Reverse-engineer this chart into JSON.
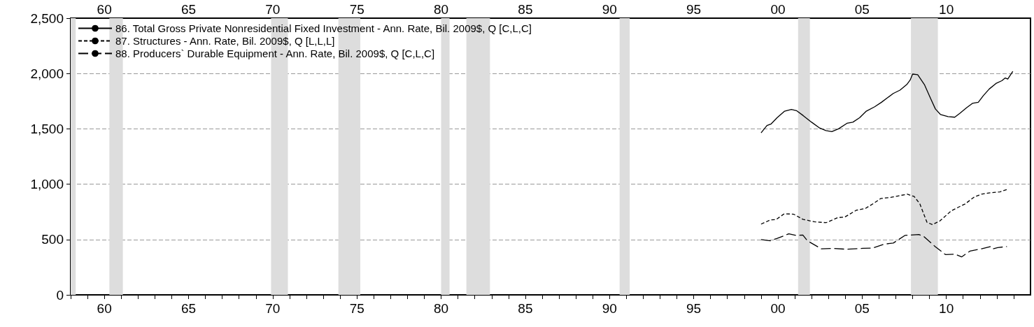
{
  "chart_data": {
    "type": "line",
    "xlim": [
      1958,
      2015
    ],
    "xticks": [
      {
        "value": 1958,
        "label": null
      },
      {
        "value": 1959,
        "label": null
      },
      {
        "value": 1960,
        "label": "60"
      },
      {
        "value": 1961,
        "label": null
      },
      {
        "value": 1962,
        "label": null
      },
      {
        "value": 1963,
        "label": null
      },
      {
        "value": 1964,
        "label": null
      },
      {
        "value": 1965,
        "label": "65"
      },
      {
        "value": 1966,
        "label": null
      },
      {
        "value": 1967,
        "label": null
      },
      {
        "value": 1968,
        "label": null
      },
      {
        "value": 1969,
        "label": null
      },
      {
        "value": 1970,
        "label": "70"
      },
      {
        "value": 1971,
        "label": null
      },
      {
        "value": 1972,
        "label": null
      },
      {
        "value": 1973,
        "label": null
      },
      {
        "value": 1974,
        "label": null
      },
      {
        "value": 1975,
        "label": "75"
      },
      {
        "value": 1976,
        "label": null
      },
      {
        "value": 1977,
        "label": null
      },
      {
        "value": 1978,
        "label": null
      },
      {
        "value": 1979,
        "label": null
      },
      {
        "value": 1980,
        "label": "80"
      },
      {
        "value": 1981,
        "label": null
      },
      {
        "value": 1982,
        "label": null
      },
      {
        "value": 1983,
        "label": null
      },
      {
        "value": 1984,
        "label": null
      },
      {
        "value": 1985,
        "label": "85"
      },
      {
        "value": 1986,
        "label": null
      },
      {
        "value": 1987,
        "label": null
      },
      {
        "value": 1988,
        "label": null
      },
      {
        "value": 1989,
        "label": null
      },
      {
        "value": 1990,
        "label": "90"
      },
      {
        "value": 1991,
        "label": null
      },
      {
        "value": 1992,
        "label": null
      },
      {
        "value": 1993,
        "label": null
      },
      {
        "value": 1994,
        "label": null
      },
      {
        "value": 1995,
        "label": "95"
      },
      {
        "value": 1996,
        "label": null
      },
      {
        "value": 1997,
        "label": null
      },
      {
        "value": 1998,
        "label": null
      },
      {
        "value": 1999,
        "label": null
      },
      {
        "value": 2000,
        "label": "00"
      },
      {
        "value": 2001,
        "label": null
      },
      {
        "value": 2002,
        "label": null
      },
      {
        "value": 2003,
        "label": null
      },
      {
        "value": 2004,
        "label": null
      },
      {
        "value": 2005,
        "label": "05"
      },
      {
        "value": 2006,
        "label": null
      },
      {
        "value": 2007,
        "label": null
      },
      {
        "value": 2008,
        "label": null
      },
      {
        "value": 2009,
        "label": null
      },
      {
        "value": 2010,
        "label": "10"
      },
      {
        "value": 2011,
        "label": null
      },
      {
        "value": 2012,
        "label": null
      },
      {
        "value": 2013,
        "label": null
      },
      {
        "value": 2014,
        "label": null
      }
    ],
    "x2lim": [
      1958,
      2015
    ],
    "x2ticks": [
      {
        "value": 1960,
        "label": "60"
      },
      {
        "value": 1965,
        "label": "65"
      },
      {
        "value": 1970,
        "label": "70"
      },
      {
        "value": 1975,
        "label": "75"
      },
      {
        "value": 1980,
        "label": "80"
      },
      {
        "value": 1985,
        "label": "85"
      },
      {
        "value": 1990,
        "label": "90"
      },
      {
        "value": 1995,
        "label": "95"
      },
      {
        "value": 2000,
        "label": "00"
      },
      {
        "value": 2005,
        "label": "05"
      },
      {
        "value": 2010,
        "label": "10"
      }
    ],
    "ylim": [
      0,
      2500
    ],
    "yticks": [
      0,
      500,
      {
        "value": 1000,
        "label": "1,000"
      },
      {
        "value": 1500,
        "label": "1,500"
      },
      {
        "value": 2000,
        "label": "2,000"
      },
      {
        "value": 2500,
        "label": "2,500"
      }
    ],
    "grid": "y",
    "legend": "top left",
    "series": [
      {
        "name": "86. Total Gross Private Nonresidential Fixed Investment - Ann. Rate, Bil. 2009$, Q [C,L,C]",
        "color": "#000000",
        "line_style": "solid",
        "x": [
          1999.0,
          1999.35,
          1999.6,
          1999.95,
          2000.4,
          2000.8,
          2001.1,
          2001.5,
          2002.0,
          2002.45,
          2002.85,
          2003.2,
          2003.6,
          2004.1,
          2004.45,
          2004.85,
          2005.25,
          2005.75,
          2006.15,
          2006.5,
          2006.85,
          2007.25,
          2007.65,
          2007.85,
          2008.0,
          2008.3,
          2008.7,
          2009.05,
          2009.35,
          2009.65,
          2010.1,
          2010.5,
          2010.8,
          2011.2,
          2011.55,
          2011.9,
          2012.2,
          2012.55,
          2012.95,
          2013.3,
          2013.5,
          2013.65,
          2013.95
        ],
        "values": [
          1464,
          1530,
          1545,
          1600,
          1660,
          1675,
          1665,
          1620,
          1560,
          1510,
          1485,
          1475,
          1500,
          1550,
          1560,
          1600,
          1660,
          1700,
          1740,
          1780,
          1820,
          1850,
          1900,
          1940,
          1995,
          1990,
          1900,
          1780,
          1680,
          1630,
          1610,
          1605,
          1640,
          1690,
          1730,
          1740,
          1800,
          1860,
          1910,
          1935,
          1960,
          1950,
          2020
        ]
      },
      {
        "name": "87. Structures - Ann. Rate, Bil. 2009$, Q [L,L,L]",
        "color": "#000000",
        "line_style": "dashed",
        "x": [
          1999.0,
          1999.55,
          1999.9,
          2000.38,
          2000.93,
          2001.48,
          2002.17,
          2002.86,
          2003.55,
          2003.96,
          2004.65,
          2005.2,
          2005.75,
          2006.1,
          2006.71,
          2007.68,
          2008.09,
          2008.43,
          2008.85,
          2009.17,
          2009.61,
          2010.3,
          2011.12,
          2011.67,
          2012.09,
          2012.64,
          2013.19,
          2013.6
        ],
        "values": [
          639,
          677,
          681,
          733,
          729,
          683,
          660,
          652,
          698,
          702,
          764,
          781,
          833,
          870,
          881,
          910,
          889,
          822,
          656,
          635,
          667,
          760,
          822,
          885,
          910,
          923,
          931,
          952
        ]
      },
      {
        "name": "88. Producers` Durable Equipment - Ann. Rate, Bil. 2009$, Q [C,L,C]",
        "color": "#000000",
        "line_style": "dashed",
        "x": [
          1999.0,
          1999.55,
          1999.96,
          2000.65,
          2001.07,
          2001.48,
          2001.75,
          2002.58,
          2003.27,
          2004.1,
          2005.06,
          2005.6,
          2006.3,
          2006.85,
          2007.54,
          2008.37,
          2008.64,
          2009.33,
          2009.95,
          2010.5,
          2010.91,
          2011.4,
          2012.09,
          2012.64,
          2012.77,
          2013.05,
          2013.6
        ],
        "values": [
          500,
          489,
          510,
          552,
          537,
          541,
          489,
          416,
          420,
          412,
          420,
          422,
          458,
          468,
          537,
          545,
          531,
          437,
          364,
          368,
          343,
          395,
          416,
          437,
          416,
          427,
          437
        ]
      }
    ],
    "bands": [
      {
        "axis": "x",
        "from": 1958,
        "to": 1958.3,
        "color": "#dddddd"
      },
      {
        "axis": "x",
        "from": 1960.3,
        "to": 1961.1,
        "color": "#dddddd"
      },
      {
        "axis": "x",
        "from": 1969.9,
        "to": 1970.9,
        "color": "#dddddd"
      },
      {
        "axis": "x",
        "from": 1973.9,
        "to": 1975.2,
        "color": "#dddddd"
      },
      {
        "axis": "x",
        "from": 1980.0,
        "to": 1980.5,
        "color": "#dddddd"
      },
      {
        "axis": "x",
        "from": 1981.5,
        "to": 1982.9,
        "color": "#dddddd"
      },
      {
        "axis": "x",
        "from": 1990.6,
        "to": 1991.2,
        "color": "#dddddd"
      },
      {
        "axis": "x",
        "from": 2001.2,
        "to": 2001.9,
        "color": "#dddddd"
      },
      {
        "axis": "x",
        "from": 2007.9,
        "to": 2009.5,
        "color": "#dddddd"
      }
    ]
  }
}
